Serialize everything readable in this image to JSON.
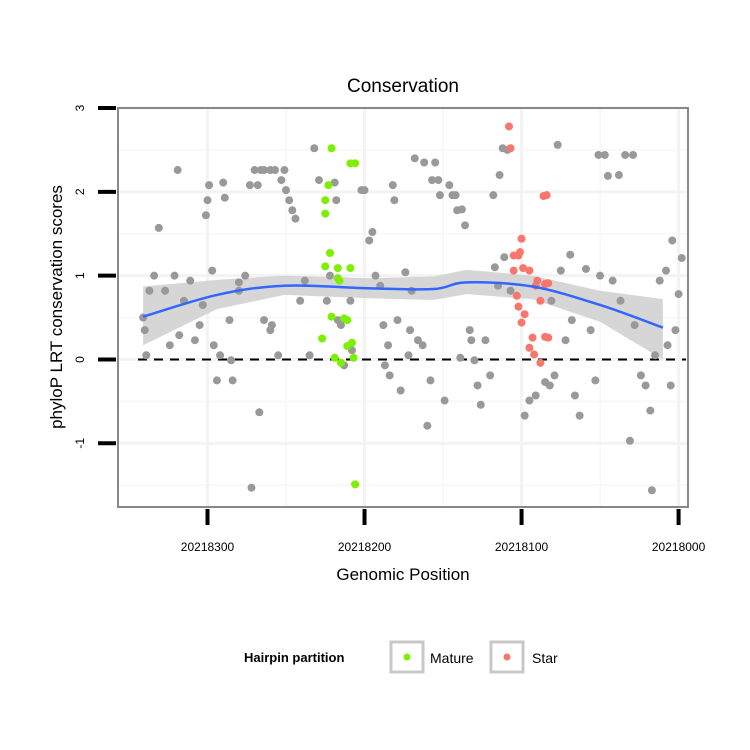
{
  "chart_data": {
    "type": "scatter",
    "title": "Conservation",
    "xlabel": "Genomic Position",
    "ylabel": "phyloP LRT conservation scores",
    "xlim": [
      20218357,
      20217994
    ],
    "x_reversed": true,
    "ylim": [
      -1.76,
      3.0
    ],
    "x_ticks": [
      20218300,
      20218200,
      20218100,
      20218000
    ],
    "x_tick_labels": [
      "20218300",
      "20218200",
      "20218100",
      "20218000"
    ],
    "y_ticks": [
      -1,
      0,
      1,
      2,
      3
    ],
    "y_tick_labels": [
      "-1",
      "0",
      "1",
      "2",
      "3"
    ],
    "hline": 0,
    "grid": true,
    "legend": {
      "title": "Hairpin partition",
      "placement": "bottom",
      "entries": [
        {
          "label": "Mature",
          "color": "#7CF000"
        },
        {
          "label": "Star",
          "color": "#F8766D"
        }
      ]
    },
    "colors": {
      "other": "#999999",
      "smooth": "#3366FF",
      "band": "#CFCFCF"
    },
    "series": [
      {
        "name": "Other",
        "points": [
          [
            20218341,
            0.5
          ],
          [
            20218340,
            0.35
          ],
          [
            20218339,
            0.05
          ],
          [
            20218337,
            0.82
          ],
          [
            20218334,
            1.0
          ],
          [
            20218331,
            1.57
          ],
          [
            20218327,
            0.82
          ],
          [
            20218324,
            0.17
          ],
          [
            20218321,
            1.0
          ],
          [
            20218319,
            2.26
          ],
          [
            20218318,
            0.29
          ],
          [
            20218315,
            0.7
          ],
          [
            20218311,
            0.94
          ],
          [
            20218308,
            0.23
          ],
          [
            20218305,
            0.41
          ],
          [
            20218303,
            0.65
          ],
          [
            20218301,
            1.72
          ],
          [
            20218300,
            1.9
          ],
          [
            20218299,
            2.08
          ],
          [
            20218297,
            1.06
          ],
          [
            20218296,
            0.17
          ],
          [
            20218294,
            -0.25
          ],
          [
            20218292,
            0.05
          ],
          [
            20218290,
            2.11
          ],
          [
            20218289,
            1.93
          ],
          [
            20218285,
            -0.01
          ],
          [
            20218286,
            0.47
          ],
          [
            20218284,
            -0.25
          ],
          [
            20218280,
            0.82
          ],
          [
            20218280,
            0.92
          ],
          [
            20218276,
            1.0
          ],
          [
            20218273,
            2.08
          ],
          [
            20218272,
            -1.53
          ],
          [
            20218270,
            2.26
          ],
          [
            20218268,
            2.08
          ],
          [
            20218267,
            -0.63
          ],
          [
            20218266,
            2.26
          ],
          [
            20218264,
            2.26
          ],
          [
            20218260,
            2.26
          ],
          [
            20218257,
            2.26
          ],
          [
            20218264,
            0.47
          ],
          [
            20218260,
            0.35
          ],
          [
            20218259,
            0.41
          ],
          [
            20218255,
            0.05
          ],
          [
            20218253,
            2.14
          ],
          [
            20218251,
            2.26
          ],
          [
            20218250,
            2.02
          ],
          [
            20218248,
            1.9
          ],
          [
            20218246,
            1.78
          ],
          [
            20218244,
            1.68
          ],
          [
            20218241,
            0.7
          ],
          [
            20218238,
            0.94
          ],
          [
            20218235,
            0.05
          ],
          [
            20218232,
            2.52
          ],
          [
            20218229,
            2.14
          ],
          [
            20218224,
            0.7
          ],
          [
            20218222,
            1.0
          ],
          [
            20218219,
            2.11
          ],
          [
            20218218,
            1.9
          ],
          [
            20218217,
            0.47
          ],
          [
            20218215,
            0.41
          ],
          [
            20218213,
            -0.07
          ],
          [
            20218209,
            0.7
          ],
          [
            20218208,
            0.11
          ],
          [
            20218202,
            2.02
          ],
          [
            20218200,
            2.02
          ],
          [
            20218197,
            1.42
          ],
          [
            20218195,
            1.52
          ],
          [
            20218193,
            1.0
          ],
          [
            20218190,
            0.88
          ],
          [
            20218188,
            0.41
          ],
          [
            20218187,
            -0.07
          ],
          [
            20218185,
            0.17
          ],
          [
            20218184,
            -0.19
          ],
          [
            20218182,
            2.08
          ],
          [
            20218181,
            1.9
          ],
          [
            20218179,
            0.47
          ],
          [
            20218177,
            -0.37
          ],
          [
            20218174,
            1.04
          ],
          [
            20218172,
            0.05
          ],
          [
            20218171,
            0.35
          ],
          [
            20218170,
            0.82
          ],
          [
            20218168,
            2.4
          ],
          [
            20218166,
            0.23
          ],
          [
            20218163,
            0.17
          ],
          [
            20218162,
            2.35
          ],
          [
            20218160,
            -0.79
          ],
          [
            20218158,
            -0.25
          ],
          [
            20218157,
            2.14
          ],
          [
            20218155,
            2.35
          ],
          [
            20218153,
            2.14
          ],
          [
            20218152,
            1.96
          ],
          [
            20218149,
            -0.49
          ],
          [
            20218146,
            2.08
          ],
          [
            20218144,
            1.96
          ],
          [
            20218142,
            1.96
          ],
          [
            20218141,
            1.78
          ],
          [
            20218139,
            0.02
          ],
          [
            20218138,
            1.79
          ],
          [
            20218136,
            1.6
          ],
          [
            20218133,
            0.35
          ],
          [
            20218132,
            0.23
          ],
          [
            20218130,
            -0.01
          ],
          [
            20218128,
            -0.31
          ],
          [
            20218126,
            -0.54
          ],
          [
            20218123,
            0.23
          ],
          [
            20218120,
            -0.19
          ],
          [
            20218118,
            1.96
          ],
          [
            20218117,
            1.1
          ],
          [
            20218115,
            0.88
          ],
          [
            20218114,
            2.2
          ],
          [
            20218112,
            2.52
          ],
          [
            20218109,
            2.5
          ],
          [
            20218111,
            1.22
          ],
          [
            20218107,
            0.82
          ],
          [
            20218098,
            -0.67
          ],
          [
            20218095,
            -0.49
          ],
          [
            20218091,
            -0.43
          ],
          [
            20218085,
            -0.27
          ],
          [
            20218082,
            -0.31
          ],
          [
            20218081,
            0.7
          ],
          [
            20218079,
            -0.19
          ],
          [
            20218077,
            2.56
          ],
          [
            20218075,
            1.06
          ],
          [
            20218072,
            0.23
          ],
          [
            20218069,
            1.25
          ],
          [
            20218068,
            0.47
          ],
          [
            20218066,
            -0.43
          ],
          [
            20218063,
            -0.67
          ],
          [
            20218059,
            1.08
          ],
          [
            20218056,
            0.35
          ],
          [
            20218053,
            -0.25
          ],
          [
            20218051,
            2.44
          ],
          [
            20218050,
            1.0
          ],
          [
            20218047,
            2.44
          ],
          [
            20218045,
            2.19
          ],
          [
            20218042,
            0.94
          ],
          [
            20218038,
            2.2
          ],
          [
            20218037,
            0.7
          ],
          [
            20218034,
            2.44
          ],
          [
            20218031,
            -0.97
          ],
          [
            20218029,
            2.44
          ],
          [
            20218028,
            0.41
          ],
          [
            20218024,
            -0.19
          ],
          [
            20218021,
            -0.31
          ],
          [
            20218018,
            -0.61
          ],
          [
            20218017,
            -1.56
          ],
          [
            20218015,
            0.05
          ],
          [
            20218012,
            0.94
          ],
          [
            20218008,
            1.06
          ],
          [
            20218007,
            0.17
          ],
          [
            20218005,
            -0.31
          ],
          [
            20218004,
            1.42
          ],
          [
            20218002,
            0.35
          ],
          [
            20217998,
            1.21
          ],
          [
            20218000,
            0.78
          ]
        ]
      },
      {
        "name": "Mature",
        "points": [
          [
            20218221,
            2.52
          ],
          [
            20218223,
            2.08
          ],
          [
            20218225,
            1.9
          ],
          [
            20218225,
            1.74
          ],
          [
            20218222,
            1.27
          ],
          [
            20218225,
            1.11
          ],
          [
            20218217,
            1.09
          ],
          [
            20218216,
            0.94
          ],
          [
            20218209,
            1.09
          ],
          [
            20218227,
            0.25
          ],
          [
            20218221,
            0.51
          ],
          [
            20218213,
            0.49
          ],
          [
            20218211,
            0.47
          ],
          [
            20218211,
            0.16
          ],
          [
            20218208,
            0.2
          ],
          [
            20218219,
            0.02
          ],
          [
            20218215,
            -0.04
          ],
          [
            20218207,
            0.02
          ],
          [
            20218217,
            0.97
          ],
          [
            20218206,
            -1.49
          ],
          [
            20218209,
            2.34
          ],
          [
            20218206,
            2.34
          ]
        ]
      },
      {
        "name": "Star",
        "points": [
          [
            20218108,
            2.78
          ],
          [
            20218107,
            2.52
          ],
          [
            20218105,
            1.24
          ],
          [
            20218102,
            1.24
          ],
          [
            20218100,
            1.44
          ],
          [
            20218101,
            1.28
          ],
          [
            20218105,
            1.06
          ],
          [
            20218099,
            1.09
          ],
          [
            20218095,
            1.06
          ],
          [
            20218091,
            0.88
          ],
          [
            20218090,
            0.94
          ],
          [
            20218088,
            0.7
          ],
          [
            20218085,
            0.9
          ],
          [
            20218083,
            0.91
          ],
          [
            20218103,
            0.76
          ],
          [
            20218102,
            0.63
          ],
          [
            20218098,
            0.54
          ],
          [
            20218100,
            0.44
          ],
          [
            20218093,
            0.26
          ],
          [
            20218095,
            0.14
          ],
          [
            20218092,
            0.06
          ],
          [
            20218088,
            -0.04
          ],
          [
            20218085,
            0.27
          ],
          [
            20218083,
            0.26
          ],
          [
            20218086,
            1.95
          ],
          [
            20218084,
            1.96
          ]
        ]
      }
    ],
    "smooth": {
      "method": "loess",
      "points": [
        [
          20218341,
          0.51,
          0.17,
          0.87
        ],
        [
          20218294,
          0.77,
          0.6,
          0.95
        ],
        [
          20218251,
          0.88,
          0.77,
          1.0
        ],
        [
          20218198,
          0.85,
          0.73,
          0.97
        ],
        [
          20218156,
          0.84,
          0.71,
          0.99
        ],
        [
          20218135,
          0.92,
          0.78,
          1.07
        ],
        [
          20218093,
          0.87,
          0.72,
          1.0
        ],
        [
          20218050,
          0.65,
          0.45,
          0.82
        ],
        [
          20218010,
          0.38,
          0.0,
          0.72
        ]
      ]
    }
  }
}
